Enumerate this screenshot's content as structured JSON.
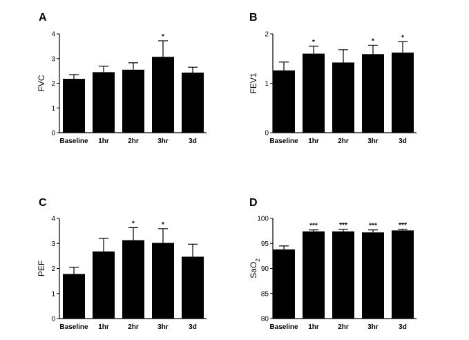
{
  "chart_data": [
    {
      "type": "bar",
      "panel": "A",
      "categories": [
        "Baseline",
        "1hr",
        "2hr",
        "3hr",
        "3d"
      ],
      "values": [
        2.18,
        2.45,
        2.55,
        3.07,
        2.43
      ],
      "errors": [
        0.17,
        0.24,
        0.28,
        0.65,
        0.22
      ],
      "significance": [
        "",
        "",
        "",
        "*",
        ""
      ],
      "ylabel": "FVC",
      "ylim": [
        0,
        4
      ],
      "yticks": [
        0,
        1,
        2,
        3,
        4
      ]
    },
    {
      "type": "bar",
      "panel": "B",
      "categories": [
        "Baseline",
        "1hr",
        "2hr",
        "3hr",
        "3d"
      ],
      "values": [
        1.26,
        1.6,
        1.42,
        1.59,
        1.62
      ],
      "errors": [
        0.17,
        0.15,
        0.26,
        0.18,
        0.22
      ],
      "significance": [
        "",
        "*",
        "",
        "*",
        "*"
      ],
      "ylabel": "FEV1",
      "ylim": [
        0,
        2
      ],
      "yticks": [
        0,
        1,
        2
      ]
    },
    {
      "type": "bar",
      "panel": "C",
      "categories": [
        "Baseline",
        "1hr",
        "2hr",
        "3hr",
        "3d"
      ],
      "values": [
        1.78,
        2.68,
        3.13,
        3.02,
        2.47
      ],
      "errors": [
        0.27,
        0.52,
        0.5,
        0.57,
        0.5
      ],
      "significance": [
        "",
        "",
        "*",
        "*",
        ""
      ],
      "ylabel": "PEF",
      "ylim": [
        0,
        4
      ],
      "yticks": [
        0,
        1,
        2,
        3,
        4
      ]
    },
    {
      "type": "bar",
      "panel": "D",
      "categories": [
        "Baseline",
        "1hr",
        "2hr",
        "3hr",
        "3d"
      ],
      "values": [
        93.8,
        97.4,
        97.4,
        97.2,
        97.6
      ],
      "errors": [
        0.7,
        0.3,
        0.4,
        0.5,
        0.2
      ],
      "significance": [
        "",
        "***",
        "***",
        "***",
        "***"
      ],
      "ylabel": "SaO",
      "ylabel_subscript": "2",
      "ylim": [
        80,
        100
      ],
      "yticks": [
        80,
        85,
        90,
        95,
        100
      ]
    }
  ]
}
